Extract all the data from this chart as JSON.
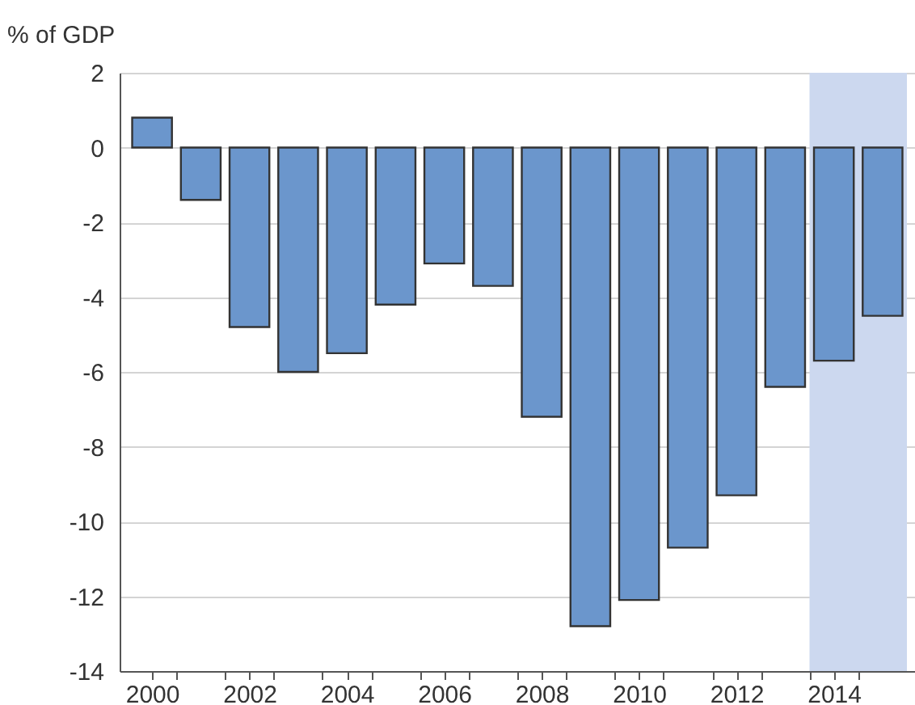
{
  "chart_data": {
    "type": "bar",
    "ylabel": "% of GDP",
    "x": [
      2000,
      2001,
      2002,
      2003,
      2004,
      2005,
      2006,
      2007,
      2008,
      2009,
      2010,
      2011,
      2012,
      2013,
      2014,
      2015
    ],
    "values": [
      0.8,
      -1.4,
      -4.8,
      -6.0,
      -5.5,
      -4.2,
      -3.1,
      -3.7,
      -7.2,
      -12.8,
      -12.1,
      -10.7,
      -9.3,
      -6.4,
      -5.7,
      -4.5
    ],
    "color": "#6b96cc",
    "xlim": [
      1999.5,
      2015.5
    ],
    "xticks": [
      2000,
      {
        "value": 2000.5,
        "label": null
      },
      {
        "value": 2001.5,
        "label": null
      },
      2002,
      {
        "value": 2002.5,
        "label": null
      },
      {
        "value": 2003.5,
        "label": null
      },
      2004,
      {
        "value": 2004.5,
        "label": null
      },
      {
        "value": 2005.5,
        "label": null
      },
      2006,
      {
        "value": 2006.5,
        "label": null
      },
      {
        "value": 2007.5,
        "label": null
      },
      2008,
      {
        "value": 2008.5,
        "label": null
      },
      {
        "value": 2009.5,
        "label": null
      },
      2010,
      {
        "value": 2010.5,
        "label": null
      },
      {
        "value": 2011.5,
        "label": null
      },
      2012,
      {
        "value": 2012.5,
        "label": null
      },
      {
        "value": 2013.5,
        "label": null
      },
      2014,
      {
        "value": 2014.5,
        "label": null
      }
    ],
    "ylim": [
      -14,
      2
    ],
    "yticks": [
      -14,
      -12,
      -10,
      -8,
      -6,
      -4,
      -2,
      0,
      2
    ],
    "bands": [
      {
        "axis": "x",
        "from": 2013.5,
        "to": 2015.5,
        "color": "#ccd8ef"
      }
    ],
    "grid": "y"
  }
}
